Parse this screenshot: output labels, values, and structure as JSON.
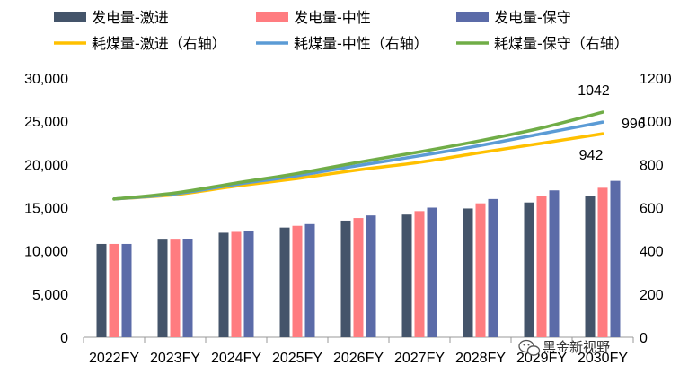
{
  "chart_data": {
    "type": "bar",
    "categories": [
      "2022FY",
      "2023FY",
      "2024FY",
      "2025FY",
      "2026FY",
      "2027FY",
      "2028FY",
      "2029FY",
      "2030FY"
    ],
    "series": [
      {
        "name": "发电量-激进",
        "kind": "bar",
        "axis": "left",
        "color": "#44546a",
        "values": [
          10800,
          11300,
          12100,
          12700,
          13500,
          14200,
          14900,
          15600,
          16300
        ]
      },
      {
        "name": "发电量-中性",
        "kind": "bar",
        "axis": "left",
        "color": "#ff7c80",
        "values": [
          10800,
          11300,
          12200,
          12900,
          13800,
          14600,
          15500,
          16300,
          17300
        ]
      },
      {
        "name": "发电量-保守",
        "kind": "bar",
        "axis": "left",
        "color": "#5b6ba8",
        "values": [
          10800,
          11350,
          12250,
          13100,
          14100,
          15000,
          16000,
          17000,
          18100
        ]
      },
      {
        "name": "耗煤量-激进（右轴）",
        "kind": "line",
        "axis": "right",
        "color": "#ffc000",
        "values": [
          640,
          660,
          700,
          735,
          775,
          810,
          855,
          898,
          942
        ]
      },
      {
        "name": "耗煤量-中性（右轴）",
        "kind": "line",
        "axis": "right",
        "color": "#5b9bd5",
        "values": [
          640,
          664,
          708,
          748,
          795,
          840,
          888,
          942,
          996
        ]
      },
      {
        "name": "耗煤量-保守（右轴）",
        "kind": "line",
        "axis": "right",
        "color": "#70ad47",
        "values": [
          640,
          668,
          714,
          758,
          810,
          858,
          910,
          969,
          1042
        ]
      }
    ],
    "ylim_left": [
      0,
      30000
    ],
    "ylim_right": [
      0,
      1200
    ],
    "yticks_left": [
      "0",
      "5,000",
      "10,000",
      "15,000",
      "20,000",
      "25,000",
      "30,000"
    ],
    "yticks_right": [
      "0",
      "200",
      "400",
      "600",
      "800",
      "1000",
      "1200"
    ],
    "annotations": [
      "1042",
      "996",
      "942"
    ],
    "grid": false,
    "legend_position": "top"
  },
  "watermark": "黑金新视野"
}
